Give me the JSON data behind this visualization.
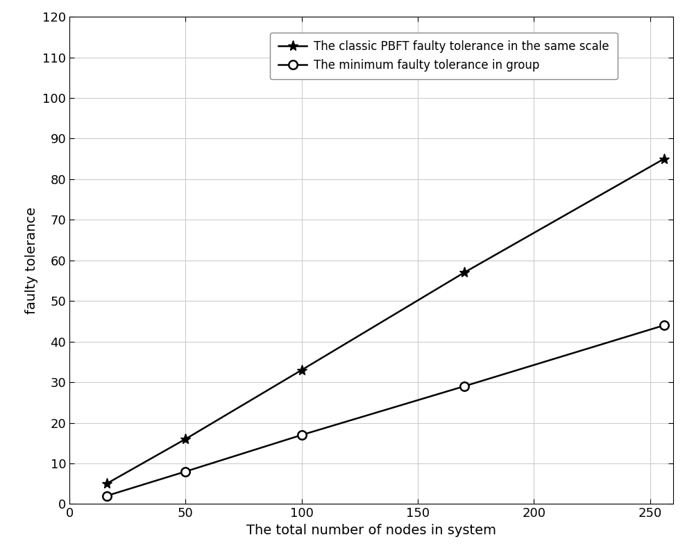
{
  "x": [
    16,
    50,
    100,
    170,
    256
  ],
  "y_pbft": [
    5,
    16,
    33,
    57,
    85
  ],
  "y_min": [
    2,
    8,
    17,
    29,
    44
  ],
  "label_pbft": "The classic PBFT faulty tolerance in the same scale",
  "label_min": "The minimum faulty tolerance in group",
  "xlabel": "The total number of nodes in system",
  "ylabel": "faulty tolerance",
  "xlim": [
    0,
    260
  ],
  "ylim": [
    0,
    120
  ],
  "xticks": [
    0,
    50,
    100,
    150,
    200,
    250
  ],
  "yticks": [
    0,
    10,
    20,
    30,
    40,
    50,
    60,
    70,
    80,
    90,
    100,
    110,
    120
  ],
  "line_color": "#000000",
  "bg_color": "#ffffff",
  "grid_color": "#cccccc",
  "linewidth": 1.8,
  "markersize_star": 11,
  "markersize_circle": 9,
  "xlabel_fontsize": 14,
  "ylabel_fontsize": 14,
  "tick_fontsize": 13,
  "legend_fontsize": 12
}
